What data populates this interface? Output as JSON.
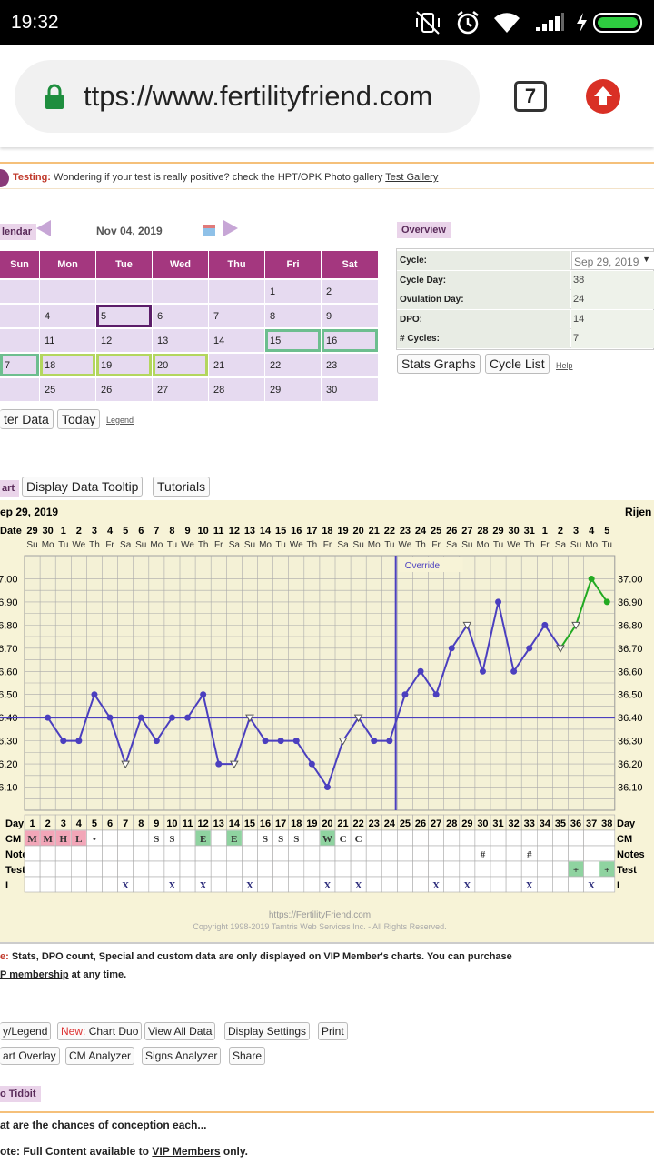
{
  "status_bar": {
    "time": "19:32"
  },
  "browser": {
    "url": "ttps://www.fertilityfriend.com",
    "tab_count": "7"
  },
  "testing_bar": {
    "label": "Testing:",
    "text": "Wondering if your test is really positive? check the HPT/OPK Photo gallery",
    "link": "Test Gallery"
  },
  "calendar": {
    "tab_label": "lendar",
    "month_label": "Nov 04, 2019",
    "weekdays": [
      "Sun",
      "Mon",
      "Tue",
      "Wed",
      "Thu",
      "Fri",
      "Sat"
    ],
    "weeks": [
      [
        "",
        "",
        "",
        "",
        "",
        "1",
        "2"
      ],
      [
        "",
        "4",
        "5",
        "6",
        "7",
        "8",
        "9"
      ],
      [
        "",
        "11",
        "12",
        "13",
        "14",
        "15",
        "16"
      ],
      [
        "7",
        "18",
        "19",
        "20",
        "21",
        "22",
        "23"
      ],
      [
        "",
        "25",
        "26",
        "27",
        "28",
        "29",
        "30"
      ]
    ],
    "enter_data": "ter Data",
    "today": "Today",
    "legend": "Legend"
  },
  "overview": {
    "title": "Overview",
    "rows": [
      {
        "label": "Cycle:",
        "value": "Sep 29, 2019"
      },
      {
        "label": "Cycle Day:",
        "value": "38"
      },
      {
        "label": "Ovulation Day:",
        "value": "24"
      },
      {
        "label": "DPO:",
        "value": "14"
      },
      {
        "label": "# Cycles:",
        "value": "7"
      }
    ],
    "stats_graphs": "Stats Graphs",
    "cycle_list": "Cycle List",
    "help": "Help"
  },
  "chart_toolbar": {
    "chart_tab": "art",
    "tooltip_btn": "Display Data Tooltip",
    "tutorials_btn": "Tutorials"
  },
  "chart_data": {
    "type": "line",
    "title": "ep 29, 2019",
    "subtitle_right": "Rijen",
    "date_row_label": "Date",
    "dates": [
      "29",
      "30",
      "1",
      "2",
      "3",
      "4",
      "5",
      "6",
      "7",
      "8",
      "9",
      "10",
      "11",
      "12",
      "13",
      "14",
      "15",
      "16",
      "17",
      "18",
      "19",
      "20",
      "21",
      "22",
      "23",
      "24",
      "25",
      "26",
      "27",
      "28",
      "29",
      "30",
      "31",
      "1",
      "2",
      "3",
      "4",
      "5"
    ],
    "weekdays": [
      "Su",
      "Mo",
      "Tu",
      "We",
      "Th",
      "Fr",
      "Sa",
      "Su",
      "Mo",
      "Tu",
      "We",
      "Th",
      "Fr",
      "Sa",
      "Su",
      "Mo",
      "Tu",
      "We",
      "Th",
      "Fr",
      "Sa",
      "Su",
      "Mo",
      "Tu",
      "We",
      "Th",
      "Fr",
      "Sa",
      "Su",
      "Mo",
      "Tu",
      "We",
      "Th",
      "Fr",
      "Sa",
      "Su",
      "Mo",
      "Tu"
    ],
    "ylim": [
      36.0,
      37.1
    ],
    "y_ticks": [
      "36.10",
      "36.20",
      "36.30",
      "36.40",
      "36.50",
      "36.60",
      "36.70",
      "36.80",
      "36.90",
      "37.00"
    ],
    "left_tick_labels": [
      "36.10",
      "36.20",
      "36.30",
      "36.40",
      "36.50",
      "36.60",
      "36.70",
      "36.80",
      "36.90",
      "37.00"
    ],
    "temps": [
      null,
      36.4,
      36.3,
      36.3,
      36.5,
      36.4,
      36.2,
      36.4,
      36.3,
      36.4,
      36.4,
      36.5,
      36.2,
      36.2,
      36.4,
      36.3,
      36.3,
      36.3,
      36.2,
      36.1,
      36.3,
      36.4,
      36.3,
      36.3,
      36.5,
      36.6,
      36.5,
      36.7,
      36.8,
      36.6,
      36.9,
      36.6,
      36.7,
      36.8,
      36.7,
      36.8,
      37.0,
      36.9
    ],
    "open_marker_days": [
      7,
      14,
      15,
      21,
      22,
      29,
      35,
      36
    ],
    "green_from_day": 35,
    "coverline": 36.4,
    "ovulation_day": 24,
    "override_label": "Override",
    "day_row_label": "Day",
    "days": [
      "1",
      "2",
      "3",
      "4",
      "5",
      "6",
      "7",
      "8",
      "9",
      "10",
      "11",
      "12",
      "13",
      "14",
      "15",
      "16",
      "17",
      "18",
      "19",
      "20",
      "21",
      "22",
      "23",
      "24",
      "25",
      "26",
      "27",
      "28",
      "29",
      "30",
      "31",
      "32",
      "33",
      "34",
      "35",
      "36",
      "37",
      "38"
    ],
    "rows": [
      {
        "label": "CM",
        "cells": {
          "1": "M",
          "2": "M",
          "3": "H",
          "4": "L",
          "5": "•",
          "9": "S",
          "10": "S",
          "12": "E",
          "14": "E",
          "16": "S",
          "17": "S",
          "18": "S",
          "20": "W",
          "21": "C",
          "22": "C"
        }
      },
      {
        "label": "Notes",
        "cells": {
          "30": "#",
          "33": "#"
        }
      },
      {
        "label": "Test",
        "cells": {
          "36": "+",
          "38": "+"
        }
      },
      {
        "label": "I",
        "cells": {
          "7": "X",
          "10": "X",
          "12": "X",
          "15": "X",
          "20": "X",
          "22": "X",
          "27": "X",
          "29": "X",
          "33": "X",
          "37": "X"
        }
      }
    ],
    "footer_url": "https://FertilityFriend.com",
    "copyright": "Copyright 1998-2019 Tamtris Web Services Inc. - All Rights Reserved."
  },
  "notice": {
    "prefix": "e:",
    "line1": "Stats, DPO count, Special and custom data are only displayed on VIP Member's charts. You can purchase",
    "link": "P membership",
    "line2_tail": "at any time."
  },
  "buttons_row1": {
    "legend": "y/Legend",
    "new_label": "New:",
    "chart_duo": "Chart Duo",
    "view_all": "View All Data",
    "display_settings": "Display Settings",
    "print": "Print"
  },
  "buttons_row2": {
    "overlay": "art Overlay",
    "cm_analyzer": "CM Analyzer",
    "signs": "Signs Analyzer",
    "share": "Share"
  },
  "tidbit": {
    "tag": "o Tidbit",
    "question": "at are the chances of conception each...",
    "note_prefix": "ote: Full Content available to",
    "note_link": "VIP Members",
    "note_tail": "only."
  },
  "colors": {
    "accent": "#a4377f",
    "chart_line": "#4b3fbf",
    "chart_green": "#22aa22",
    "chart_bg": "#f7f3d7"
  }
}
